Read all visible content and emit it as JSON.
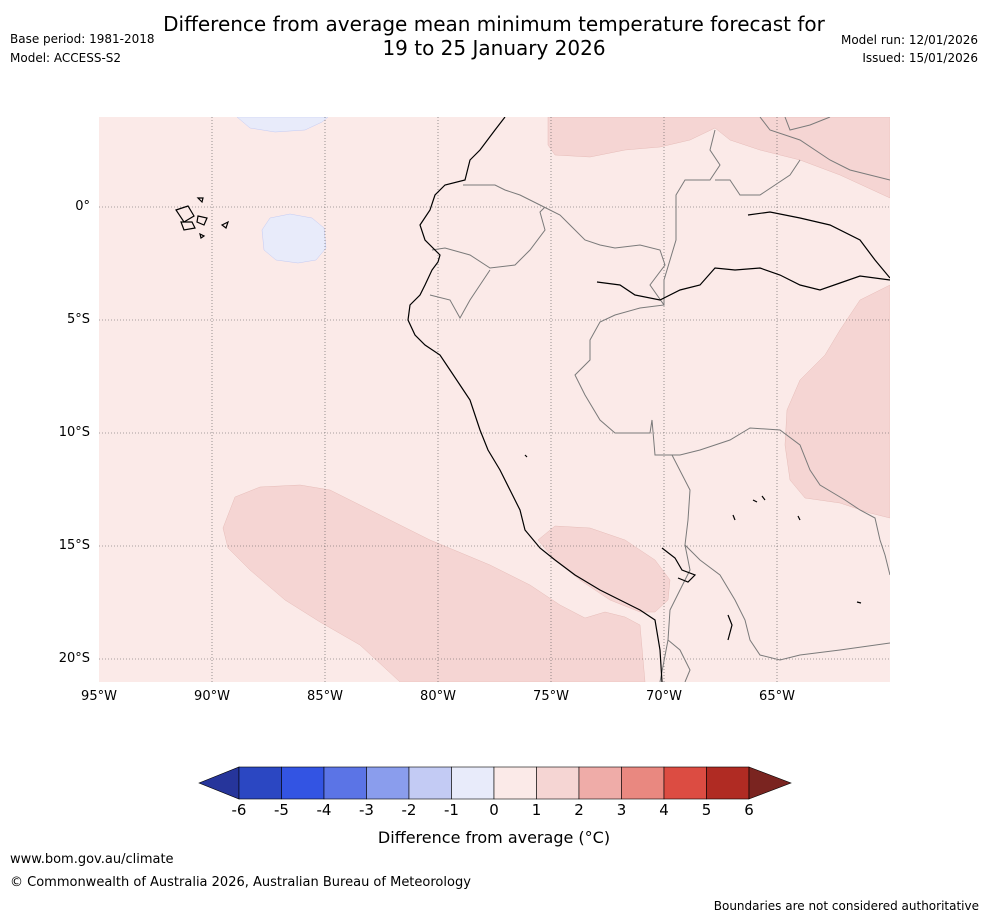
{
  "title": {
    "line1": "Difference from average mean minimum temperature forecast for",
    "line2": "19 to 25 January 2026"
  },
  "meta_left": {
    "base_period": "Base period: 1981-2018",
    "model": "Model: ACCESS-S2"
  },
  "meta_right": {
    "model_run": "Model run: 12/01/2026",
    "issued": "Issued: 15/01/2026"
  },
  "map": {
    "lat_labels": [
      "0°",
      "5°S",
      "10°S",
      "15°S",
      "20°S"
    ],
    "lon_labels": [
      "95°W",
      "90°W",
      "85°W",
      "80°W",
      "75°W",
      "70°W",
      "65°W"
    ]
  },
  "colorbar": {
    "ticks": [
      "-6",
      "-5",
      "-4",
      "-3",
      "-2",
      "-1",
      "0",
      "1",
      "2",
      "3",
      "4",
      "5",
      "6"
    ],
    "colors": [
      "#26359b",
      "#2b47c2",
      "#3354e3",
      "#5b74e6",
      "#8a9ded",
      "#c3cbf4",
      "#e8ebfa",
      "#fbeae8",
      "#f5d5d3",
      "#efaca8",
      "#e98880",
      "#dc4c42",
      "#b02b23",
      "#7a2420"
    ],
    "label": "Difference from average (°C)"
  },
  "footer": {
    "url": "www.bom.gov.au/climate",
    "copyright": "© Commonwealth of Australia 2026, Australian Bureau of Meteorology",
    "disclaimer": "Boundaries are not considered authoritative"
  }
}
